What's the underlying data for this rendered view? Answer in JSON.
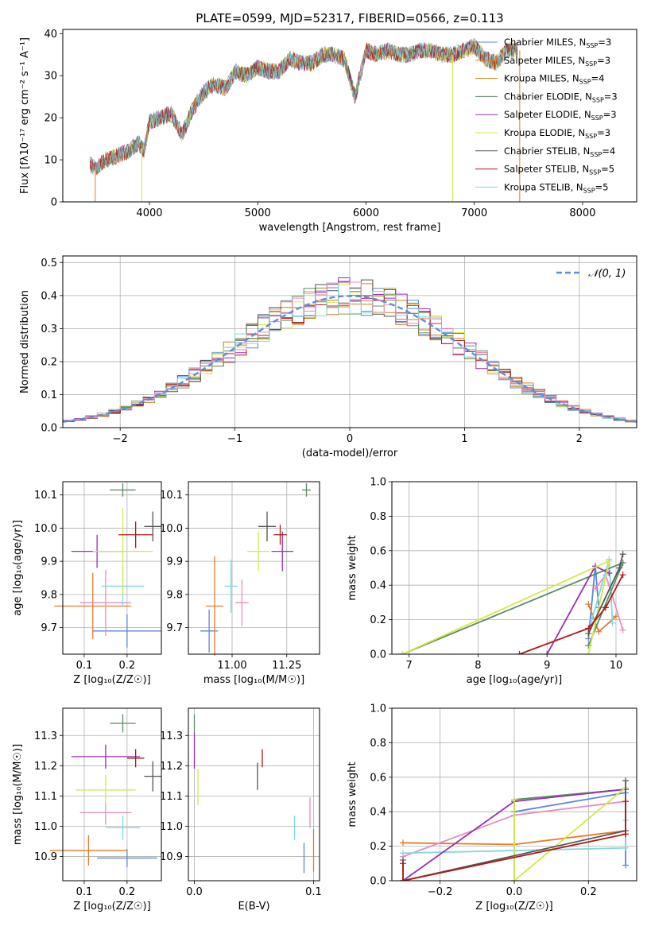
{
  "chart_data": [
    {
      "id": "spectrum",
      "type": "line",
      "title": "PLATE=0599, MJD=52317, FIBERID=0566, z=0.113",
      "xlabel": "wavelength [Angstrom, rest frame]",
      "ylabel": "Flux [fλ10⁻¹⁷ erg cm⁻² s⁻¹ A⁻¹]",
      "xlim": [
        3200,
        8500
      ],
      "ylim": [
        0,
        41
      ],
      "xticks": [
        4000,
        5000,
        6000,
        7000,
        8000
      ],
      "yticks": [
        0,
        10,
        20,
        30,
        40
      ],
      "grid": false,
      "legend_position": "right",
      "x": [
        3450,
        3500,
        3600,
        3700,
        3800,
        3900,
        3950,
        4000,
        4100,
        4200,
        4300,
        4400,
        4500,
        4600,
        4700,
        4800,
        4900,
        5000,
        5100,
        5200,
        5300,
        5400,
        5500,
        5600,
        5700,
        5800,
        5900,
        6000,
        6100,
        6200,
        6300,
        6400,
        6500,
        6600,
        6700,
        6800,
        6900,
        7000,
        7100,
        7200,
        7300,
        7400
      ],
      "flux": [
        9,
        8,
        10,
        11,
        12,
        14,
        12,
        19,
        20,
        21,
        16,
        22,
        26,
        28,
        27,
        31,
        30,
        32,
        31,
        31,
        34,
        33,
        33,
        35,
        35,
        34,
        25,
        36,
        35,
        36,
        35,
        35,
        36,
        36,
        35,
        35,
        36,
        37,
        34,
        33,
        36,
        36
      ],
      "series": [
        {
          "name": "Chabrier MILES, N",
          "sub": "SSP",
          "suffix": "=3",
          "color": "#5b87d6"
        },
        {
          "name": "Salpeter MILES, N",
          "sub": "SSP",
          "suffix": "=3",
          "color": "#e27c2a"
        },
        {
          "name": "Kroupa MILES, N",
          "sub": "SSP",
          "suffix": "=4",
          "color": "#b8860b"
        },
        {
          "name": "Chabrier ELODIE, N",
          "sub": "SSP",
          "suffix": "=3",
          "color": "#5e8c64"
        },
        {
          "name": "Salpeter ELODIE, N",
          "sub": "SSP",
          "suffix": "=3",
          "color": "#9a2fb0"
        },
        {
          "name": "Kroupa ELODIE, N",
          "sub": "SSP",
          "suffix": "=3",
          "color": "#d4e84a"
        },
        {
          "name": "Chabrier STELIB, N",
          "sub": "SSP",
          "suffix": "=4",
          "color": "#555555"
        },
        {
          "name": "Salpeter STELIB, N",
          "sub": "SSP",
          "suffix": "=5",
          "color": "#b01818"
        },
        {
          "name": "Kroupa STELIB, N",
          "sub": "SSP",
          "suffix": "=5",
          "color": "#7fd8e0"
        }
      ]
    },
    {
      "id": "residuals",
      "type": "histogram",
      "xlabel": "(data-model)/error",
      "ylabel": "Normed distribution",
      "xlim": [
        -2.5,
        2.5
      ],
      "ylim": [
        0,
        0.52
      ],
      "xticks": [
        -2,
        -1,
        0,
        1,
        2
      ],
      "yticks": [
        0.0,
        0.1,
        0.2,
        0.3,
        0.4,
        0.5
      ],
      "grid": true,
      "legend_position": "top-right",
      "gaussian_label": "𝒩(0, 1)",
      "gaussian_color": "#5b8fd8",
      "bin_width": 0.1
    },
    {
      "id": "age_vs_Z",
      "type": "scatter",
      "xlabel": "Z [log₁₀(Z/Z☉)]",
      "ylabel": "age  [log₁₀(age/yr)]",
      "xlim": [
        0.05,
        0.28
      ],
      "ylim": [
        9.62,
        10.14
      ],
      "xticks": [
        0.1,
        0.2
      ],
      "yticks": [
        9.7,
        9.8,
        9.9,
        10.0,
        10.1
      ],
      "grid": true,
      "points": [
        {
          "x": 0.2,
          "y": 9.69,
          "xerr": 0.08,
          "yerr": 0.05,
          "color": "#5b87d6"
        },
        {
          "x": 0.12,
          "y": 9.765,
          "xerr": 0.09,
          "yerr": 0.1,
          "color": "#e27c2a"
        },
        {
          "x": 0.15,
          "y": 9.775,
          "xerr": 0.06,
          "yerr": 0.1,
          "color": "#e88cc0"
        },
        {
          "x": 0.19,
          "y": 9.825,
          "xerr": 0.05,
          "yerr": 0.06,
          "color": "#7fd8e0"
        },
        {
          "x": 0.19,
          "y": 10.115,
          "xerr": 0.03,
          "yerr": 0.02,
          "color": "#5e8c64"
        },
        {
          "x": 0.13,
          "y": 9.93,
          "xerr": 0.06,
          "yerr": 0.05,
          "color": "#9a2fb0"
        },
        {
          "x": 0.19,
          "y": 9.93,
          "xerr": 0.07,
          "yerr": 0.13,
          "color": "#d4e84a"
        },
        {
          "x": 0.26,
          "y": 10.005,
          "xerr": 0.02,
          "yerr": 0.045,
          "color": "#555555"
        },
        {
          "x": 0.22,
          "y": 9.98,
          "xerr": 0.04,
          "yerr": 0.04,
          "color": "#b01818"
        }
      ]
    },
    {
      "id": "age_vs_mass",
      "type": "scatter",
      "xlabel": "mass [log₁₀(M/M☉)]",
      "ylabel": "",
      "xlim": [
        10.8,
        11.4
      ],
      "ylim": [
        9.62,
        10.14
      ],
      "xticks": [
        11.0,
        11.25
      ],
      "yticks": [
        9.7,
        9.8,
        9.9,
        10.0,
        10.1
      ],
      "grid": true,
      "points": [
        {
          "x": 10.895,
          "y": 9.69,
          "xerr": 0.04,
          "yerr": 0.065,
          "color": "#5b87d6"
        },
        {
          "x": 10.92,
          "y": 9.765,
          "xerr": 0.04,
          "yerr": 0.15,
          "color": "#e27c2a"
        },
        {
          "x": 11.045,
          "y": 9.775,
          "xerr": 0.03,
          "yerr": 0.07,
          "color": "#e88cc0"
        },
        {
          "x": 10.995,
          "y": 9.825,
          "xerr": 0.03,
          "yerr": 0.08,
          "color": "#7fd8e0"
        },
        {
          "x": 11.34,
          "y": 10.115,
          "xerr": 0.02,
          "yerr": 0.02,
          "color": "#5e8c64"
        },
        {
          "x": 11.23,
          "y": 9.93,
          "xerr": 0.05,
          "yerr": 0.06,
          "color": "#9a2fb0"
        },
        {
          "x": 11.12,
          "y": 9.93,
          "xerr": 0.05,
          "yerr": 0.06,
          "color": "#d4e84a"
        },
        {
          "x": 11.16,
          "y": 10.005,
          "xerr": 0.04,
          "yerr": 0.045,
          "color": "#555555"
        },
        {
          "x": 11.22,
          "y": 9.98,
          "xerr": 0.03,
          "yerr": 0.03,
          "color": "#b01818"
        }
      ]
    },
    {
      "id": "weight_vs_age",
      "type": "line",
      "xlabel": "age  [log₁₀(age/yr)]",
      "ylabel": "mass weight",
      "xlim": [
        6.75,
        10.3
      ],
      "ylim": [
        0,
        1
      ],
      "xticks": [
        7,
        8,
        9,
        10
      ],
      "yticks": [
        0.0,
        0.2,
        0.4,
        0.6,
        0.8,
        1.0
      ],
      "grid": true,
      "series": [
        {
          "color": "#5b87d6",
          "x": [
            9.6,
            9.7,
            9.75
          ],
          "y": [
            0.09,
            0.51,
            0.27
          ]
        },
        {
          "color": "#e27c2a",
          "x": [
            9.6,
            9.75,
            10.0
          ],
          "y": [
            0.29,
            0.13,
            0.22
          ]
        },
        {
          "color": "#e88cc0",
          "x": [
            9.7,
            9.85,
            10.1
          ],
          "y": [
            0.38,
            0.46,
            0.14
          ]
        },
        {
          "color": "#7fd8e0",
          "x": [
            9.65,
            9.9,
            9.95
          ],
          "y": [
            0.2,
            0.55,
            0.18
          ]
        },
        {
          "color": "#5e8c64",
          "x": [
            6.9,
            10.1,
            9.6
          ],
          "y": [
            0.0,
            0.53,
            0.05
          ]
        },
        {
          "color": "#9a2fb0",
          "x": [
            9.0,
            9.7,
            9.9
          ],
          "y": [
            0.0,
            0.51,
            0.47
          ]
        },
        {
          "color": "#d4e84a",
          "x": [
            6.9,
            9.9,
            9.6
          ],
          "y": [
            0.0,
            0.54,
            0.0
          ]
        },
        {
          "color": "#555555",
          "x": [
            9.6,
            10.05,
            10.1
          ],
          "y": [
            0.12,
            0.5,
            0.58
          ]
        },
        {
          "color": "#b01818",
          "x": [
            8.6,
            9.6,
            9.85,
            10.1
          ],
          "y": [
            0.0,
            0.15,
            0.27,
            0.46
          ]
        }
      ]
    },
    {
      "id": "mass_vs_Z",
      "type": "scatter",
      "xlabel": "Z [log₁₀(Z/Z☉)]",
      "ylabel": "mass [log₁₀(M/M☉)]",
      "xlim": [
        0.05,
        0.28
      ],
      "ylim": [
        10.82,
        11.39
      ],
      "xticks": [
        0.1,
        0.2
      ],
      "yticks": [
        10.9,
        11.0,
        11.1,
        11.2,
        11.3
      ],
      "grid": true,
      "points": [
        {
          "x": 0.2,
          "y": 10.895,
          "xerr": 0.07,
          "yerr": 0.03,
          "color": "#5b87d6"
        },
        {
          "x": 0.11,
          "y": 10.92,
          "xerr": 0.09,
          "yerr": 0.05,
          "color": "#e27c2a"
        },
        {
          "x": 0.15,
          "y": 11.045,
          "xerr": 0.06,
          "yerr": 0.04,
          "color": "#e88cc0"
        },
        {
          "x": 0.19,
          "y": 10.995,
          "xerr": 0.04,
          "yerr": 0.04,
          "color": "#7fd8e0"
        },
        {
          "x": 0.19,
          "y": 11.34,
          "xerr": 0.03,
          "yerr": 0.03,
          "color": "#5e8c64"
        },
        {
          "x": 0.15,
          "y": 11.23,
          "xerr": 0.08,
          "yerr": 0.04,
          "color": "#9a2fb0"
        },
        {
          "x": 0.15,
          "y": 11.12,
          "xerr": 0.07,
          "yerr": 0.05,
          "color": "#d4e84a"
        },
        {
          "x": 0.26,
          "y": 11.165,
          "xerr": 0.02,
          "yerr": 0.05,
          "color": "#555555"
        },
        {
          "x": 0.22,
          "y": 11.225,
          "xerr": 0.02,
          "yerr": 0.03,
          "color": "#b01818"
        }
      ]
    },
    {
      "id": "mass_vs_ebv",
      "type": "scatter",
      "xlabel": "E(B-V)",
      "ylabel": "",
      "xlim": [
        -0.005,
        0.105
      ],
      "ylim": [
        10.82,
        11.39
      ],
      "xticks": [
        0.0,
        0.1
      ],
      "yticks": [
        10.9,
        11.0,
        11.1,
        11.2,
        11.3
      ],
      "grid": true,
      "points": [
        {
          "x": 0.092,
          "y": 10.895,
          "xerr": 0,
          "yerr": 0.05,
          "color": "#5b87d6"
        },
        {
          "x": 0.1,
          "y": 10.92,
          "xerr": 0,
          "yerr": 0.07,
          "color": "#e27c2a"
        },
        {
          "x": 0.097,
          "y": 11.045,
          "xerr": 0,
          "yerr": 0.05,
          "color": "#e88cc0"
        },
        {
          "x": 0.084,
          "y": 10.995,
          "xerr": 0,
          "yerr": 0.04,
          "color": "#7fd8e0"
        },
        {
          "x": 0.0,
          "y": 11.34,
          "xerr": 0,
          "yerr": 0.03,
          "color": "#5e8c64"
        },
        {
          "x": 0.0,
          "y": 11.25,
          "xerr": 0,
          "yerr": 0.06,
          "color": "#9a2fb0"
        },
        {
          "x": 0.003,
          "y": 11.13,
          "xerr": 0,
          "yerr": 0.06,
          "color": "#d4e84a"
        },
        {
          "x": 0.053,
          "y": 11.165,
          "xerr": 0,
          "yerr": 0.045,
          "color": "#555555"
        },
        {
          "x": 0.057,
          "y": 11.225,
          "xerr": 0,
          "yerr": 0.03,
          "color": "#b01818"
        }
      ]
    },
    {
      "id": "weight_vs_Z",
      "type": "line",
      "xlabel": "Z [log₁₀(Z/Z☉)]",
      "ylabel": "mass weight",
      "xlim": [
        -0.33,
        0.33
      ],
      "ylim": [
        0,
        1
      ],
      "xticks": [
        -0.2,
        0.0,
        0.2
      ],
      "yticks": [
        0.0,
        0.2,
        0.4,
        0.6,
        0.8,
        1.0
      ],
      "grid": true,
      "series": [
        {
          "color": "#5b87d6",
          "x": [
            0.0,
            0.3,
            0.3
          ],
          "y": [
            0.4,
            0.51,
            0.09
          ]
        },
        {
          "color": "#e27c2a",
          "x": [
            -0.3,
            0.0,
            0.3
          ],
          "y": [
            0.22,
            0.21,
            0.29
          ]
        },
        {
          "color": "#e88cc0",
          "x": [
            -0.3,
            0.0,
            0.3
          ],
          "y": [
            0.14,
            0.38,
            0.46
          ]
        },
        {
          "color": "#7fd8e0",
          "x": [
            -0.3,
            0.3,
            0.3
          ],
          "y": [
            0.16,
            0.19,
            0.35
          ]
        },
        {
          "color": "#5e8c64",
          "x": [
            0.0,
            0.0,
            0.3
          ],
          "y": [
            0.0,
            0.47,
            0.53
          ]
        },
        {
          "color": "#9a2fb0",
          "x": [
            -0.3,
            0.0,
            0.3
          ],
          "y": [
            0.0,
            0.46,
            0.53
          ]
        },
        {
          "color": "#d4e84a",
          "x": [
            0.0,
            0.0,
            0.3
          ],
          "y": [
            0.47,
            0.0,
            0.54
          ]
        },
        {
          "color": "#555555",
          "x": [
            -0.3,
            -0.3,
            0.3,
            0.3
          ],
          "y": [
            0.12,
            0.0,
            0.29,
            0.58
          ]
        },
        {
          "color": "#b01818",
          "x": [
            -0.3,
            -0.3,
            0.3,
            0.3
          ],
          "y": [
            0.1,
            0.0,
            0.27,
            0.46
          ]
        }
      ]
    }
  ]
}
